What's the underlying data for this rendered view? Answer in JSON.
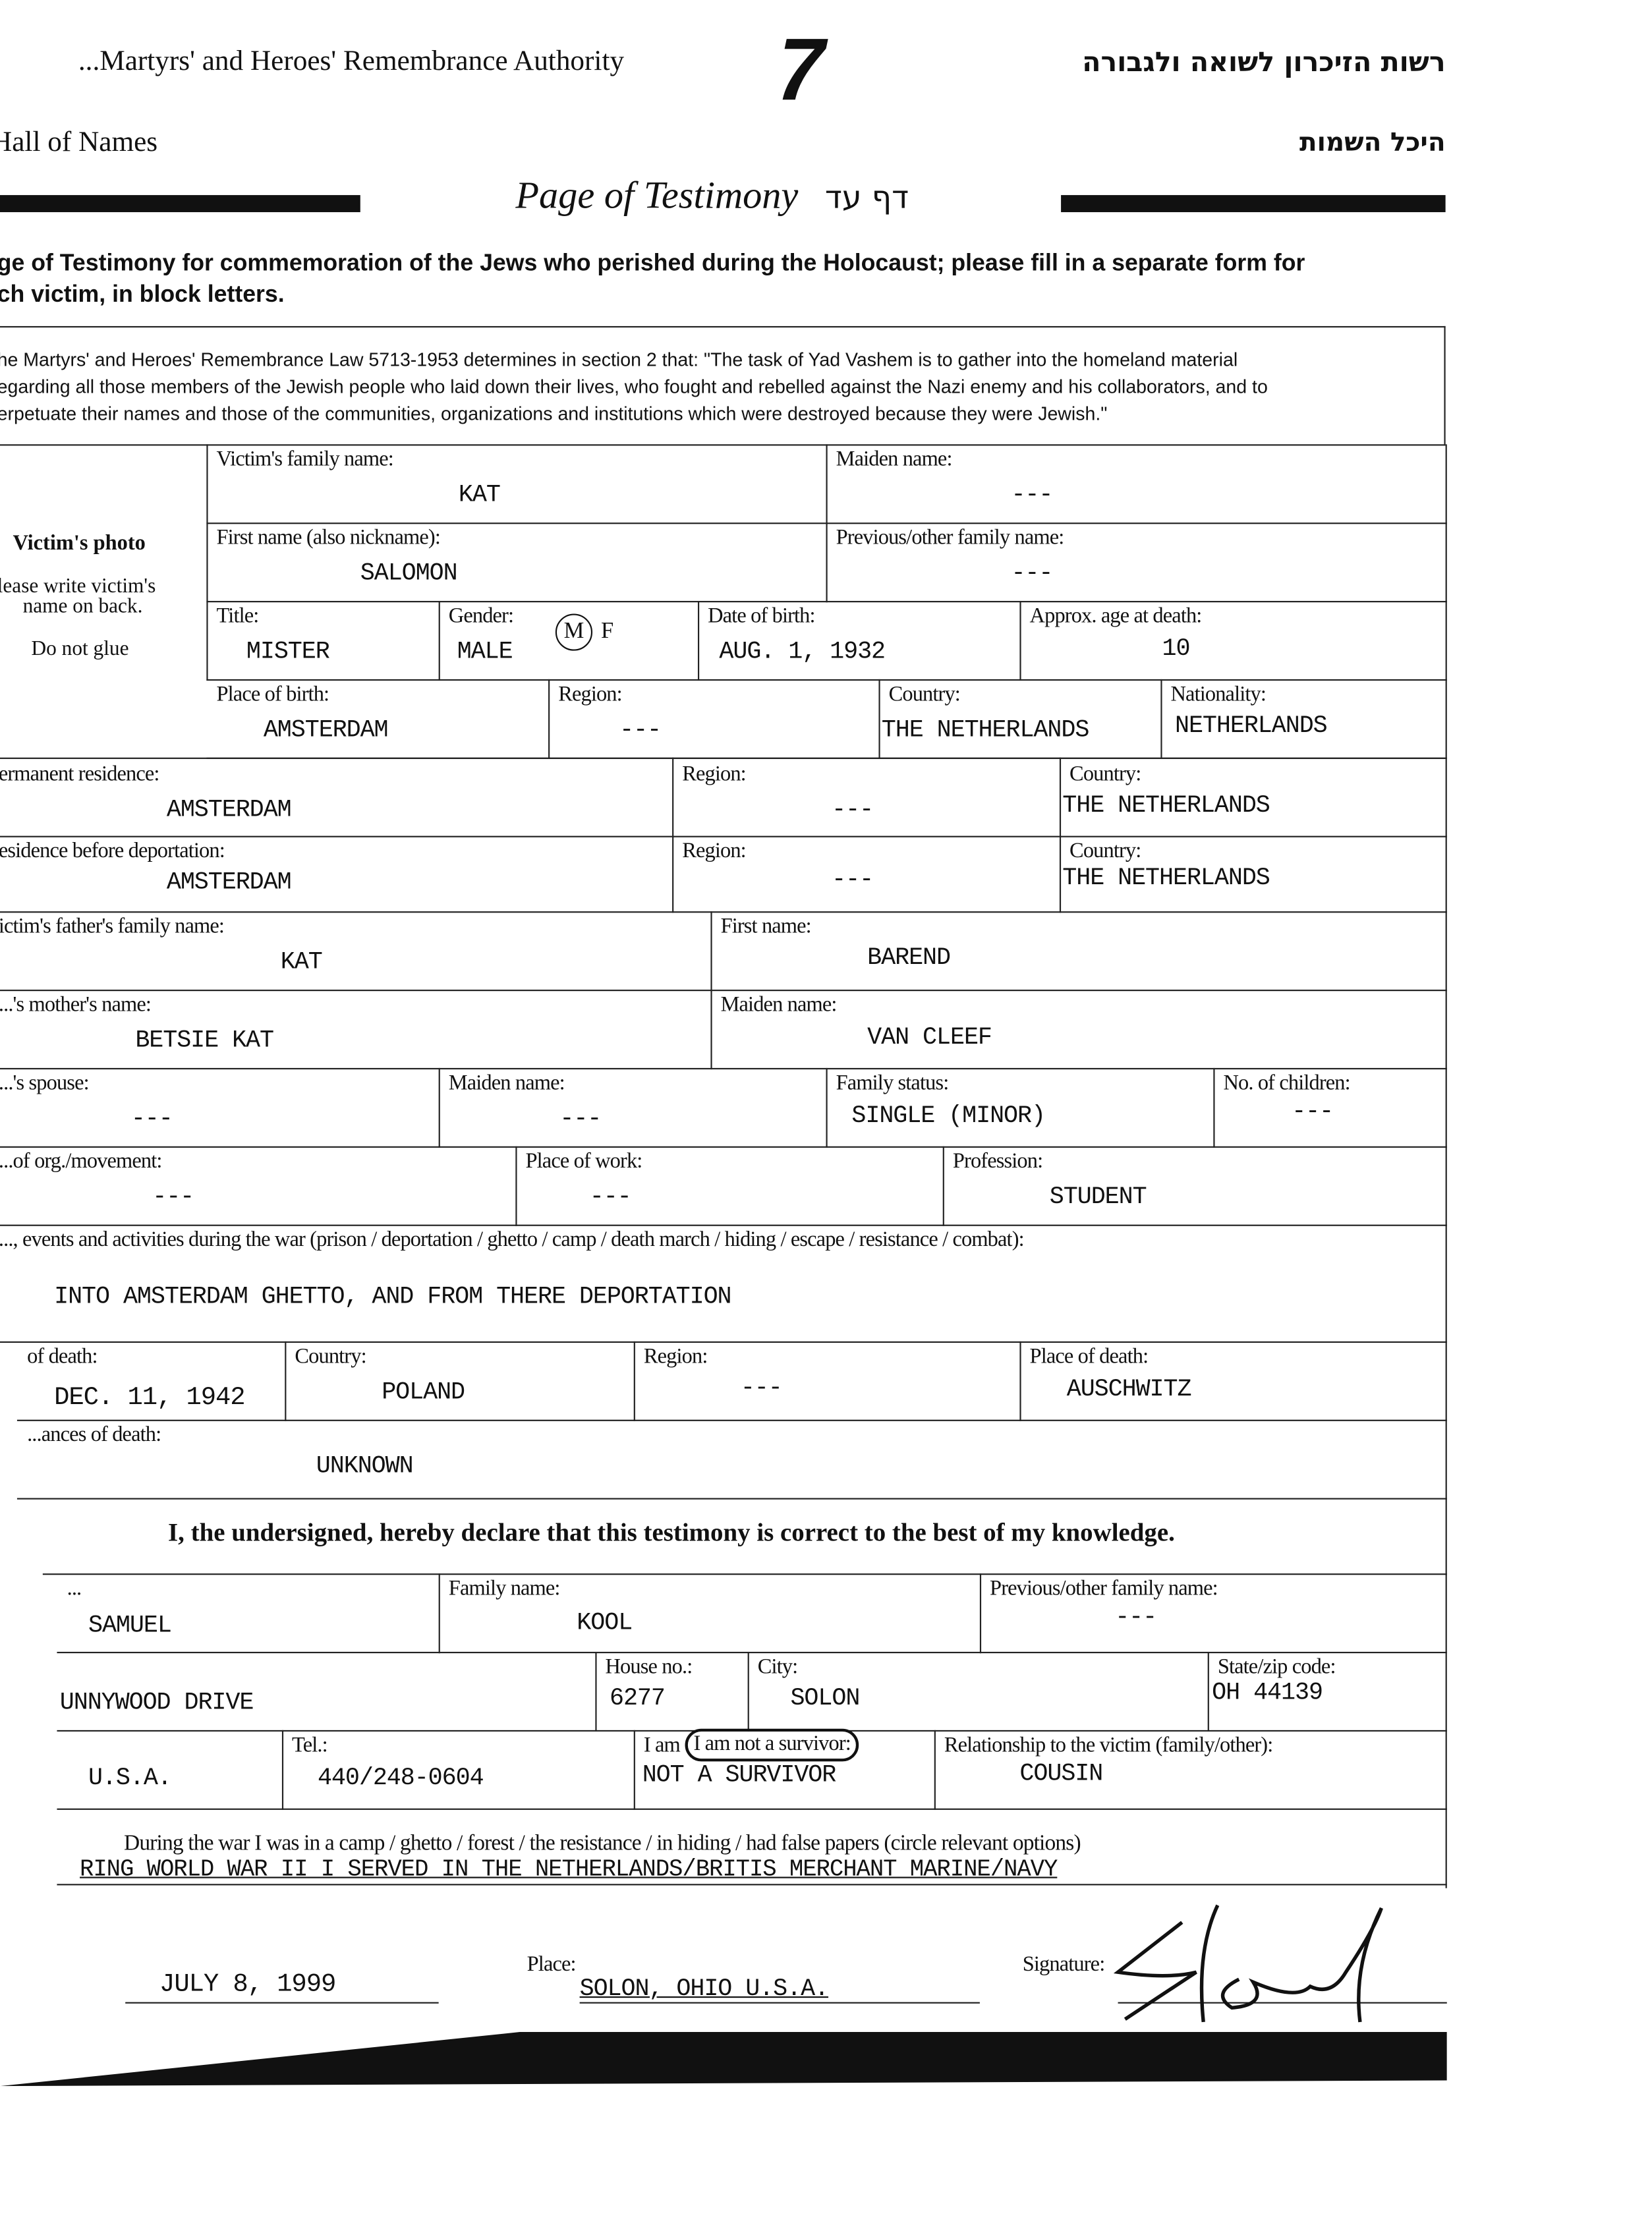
{
  "header": {
    "org_en": "...Martyrs' and Heroes' Remembrance Authority",
    "page_number": "7",
    "org_he": "רשות הזיכרון לשואה ולגבורה",
    "hall_en": "Hall of Names",
    "hall_he": "היכל השמות",
    "title_en": "Page of Testimony",
    "title_he": "דף עד"
  },
  "intro": {
    "line1": "ge of Testimony for commemoration of the Jews who perished during the Holocaust; please fill in a separate form for",
    "line2": "ch victim, in block letters.",
    "law1": "he Martyrs' and Heroes' Remembrance Law  5713-1953 determines in section 2 that: \"The task of Yad Vashem is to gather into the homeland material",
    "law2": "egarding all those members of the Jewish people who laid down their lives, who fought and rebelled against the Nazi enemy and his collaborators, and to",
    "law3": "erpetuate their names and those of the communities, organizations and institutions which were destroyed because they were Jewish.\""
  },
  "photo": {
    "title": "Victim's photo",
    "note1": "lease write victim's",
    "note2": "name on back.",
    "note3": "Do not glue"
  },
  "victim": {
    "family_name": {
      "label": "Victim's family name:",
      "value": "KAT"
    },
    "maiden_name": {
      "label": "Maiden name:",
      "value": "---"
    },
    "first_name": {
      "label": "First name (also nickname):",
      "value": "SALOMON"
    },
    "prev_name": {
      "label": "Previous/other family name:",
      "value": "---"
    },
    "title": {
      "label": "Title:",
      "value": "MISTER"
    },
    "gender": {
      "label": "Gender:",
      "value": "MALE",
      "options": [
        "M",
        "F"
      ],
      "selected": "M"
    },
    "dob": {
      "label": "Date of birth:",
      "value": "AUG. 1, 1932"
    },
    "age": {
      "label": "Approx. age at death:",
      "value": "10"
    },
    "pob": {
      "label": "Place of birth:",
      "value": "AMSTERDAM"
    },
    "pob_region": {
      "label": "Region:",
      "value": "---"
    },
    "pob_country": {
      "label": "Country:",
      "value": "THE NETHERLANDS"
    },
    "nationality": {
      "label": "Nationality:",
      "value": "NETHERLANDS"
    },
    "perm": {
      "label": "ermanent residence:",
      "value": "AMSTERDAM"
    },
    "perm_region": {
      "label": "Region:",
      "value": "---"
    },
    "perm_country": {
      "label": "Country:",
      "value": "THE NETHERLANDS"
    },
    "before": {
      "label": "esidence before deportation:",
      "value": "AMSTERDAM"
    },
    "before_region": {
      "label": "Region:",
      "value": "---"
    },
    "before_country": {
      "label": "Country:",
      "value": "THE NETHERLANDS"
    },
    "father": {
      "label": "ictim's father's family name:",
      "value": "KAT"
    },
    "father_first": {
      "label": "First name:",
      "value": "BAREND"
    },
    "mother": {
      "label": "...'s mother's name:",
      "value": "BETSIE KAT"
    },
    "mother_maiden": {
      "label": "Maiden name:",
      "value": "VAN CLEEF"
    },
    "spouse": {
      "label": "...'s spouse:",
      "value": "---"
    },
    "spouse_maiden": {
      "label": "Maiden name:",
      "value": "---"
    },
    "family_status": {
      "label": "Family status:",
      "value": "SINGLE (MINOR)"
    },
    "children": {
      "label": "No. of children:",
      "value": "---"
    },
    "org": {
      "label": "...of org./movement:",
      "value": "---"
    },
    "work": {
      "label": "Place of work:",
      "value": "---"
    },
    "profession": {
      "label": "Profession:",
      "value": "STUDENT"
    },
    "events": {
      "label": "..., events and activities during the war (prison / deportation / ghetto / camp / death march / hiding / escape / resistance / combat):",
      "value": "INTO AMSTERDAM GHETTO, AND FROM THERE DEPORTATION"
    },
    "dod": {
      "label": "of death:",
      "value": "DEC. 11, 1942"
    },
    "dod_country": {
      "label": "Country:",
      "value": "POLAND"
    },
    "dod_region": {
      "label": "Region:",
      "value": "---"
    },
    "dod_place": {
      "label": "Place of death:",
      "value": "AUSCHWITZ"
    },
    "circ": {
      "label": "...ances of death:",
      "value": "UNKNOWN"
    }
  },
  "declaration": "I, the undersigned, hereby declare that this testimony is correct to the best of my knowledge.",
  "submitter": {
    "first": {
      "label": "...",
      "value": "SAMUEL"
    },
    "family": {
      "label": "Family name:",
      "value": "KOOL"
    },
    "prev": {
      "label": "Previous/other family name:",
      "value": "---"
    },
    "street": {
      "value": "UNNYWOOD DRIVE"
    },
    "house": {
      "label": "House no.:",
      "value": "6277"
    },
    "city": {
      "label": "City:",
      "value": "SOLON"
    },
    "state": {
      "label": "State/zip code:",
      "value": "OH 44139"
    },
    "country": {
      "value": "U.S.A."
    },
    "tel": {
      "label": "Tel.:",
      "value": "440/248-0604"
    },
    "survivor": {
      "label_prefix": "I am",
      "label_circled": "I am not a survivor:",
      "value": "NOT A SURVIVOR"
    },
    "relation": {
      "label": "Relationship to the victim (family/other):",
      "value": "COUSIN"
    },
    "war_label": "During the war I was in a camp / ghetto / forest / the resistance / in hiding / had false papers (circle relevant options)",
    "war_value": "RING WORLD WAR II I SERVED IN THE NETHERLANDS/BRITIS MERCHANT MARINE/NAVY",
    "date": "JULY 8, 1999",
    "place_label": "Place:",
    "place": "SOLON, OHIO U.S.A.",
    "signature_label": "Signature:",
    "signature": "S Kool"
  }
}
